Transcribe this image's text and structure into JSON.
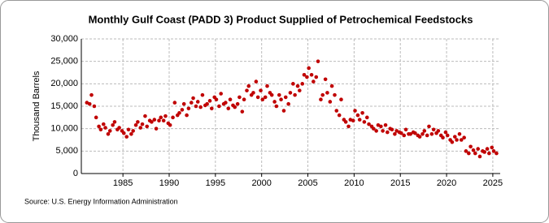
{
  "chart_data": {
    "type": "scatter",
    "title": "Monthly Gulf Coast (PADD 3) Product Supplied of Petrochemical Feedstocks",
    "y_label": "Thousand Barrels",
    "source": "Source: U.S. Energy Information Administration",
    "xlim": [
      1980.5,
      2025.8
    ],
    "ylim": [
      0,
      30000
    ],
    "xticks": [
      1985,
      1990,
      1995,
      2000,
      2005,
      2010,
      2015,
      2020,
      2025
    ],
    "yticks": [
      {
        "value": 0,
        "label": "0"
      },
      {
        "value": 5000,
        "label": "5,000"
      },
      {
        "value": 10000,
        "label": "10,000"
      },
      {
        "value": 15000,
        "label": "15,000"
      },
      {
        "value": 20000,
        "label": "20,000"
      },
      {
        "value": 25000,
        "label": "25,000"
      },
      {
        "value": 30000,
        "label": "30,000"
      }
    ],
    "grid": true,
    "color": "#c00000",
    "x": [
      1981.1,
      1981.4,
      1981.6,
      1981.9,
      1982.1,
      1982.4,
      1982.6,
      1982.9,
      1983.1,
      1983.4,
      1983.6,
      1983.9,
      1984.1,
      1984.4,
      1984.6,
      1984.9,
      1985.1,
      1985.4,
      1985.6,
      1985.9,
      1986.1,
      1986.4,
      1986.6,
      1986.9,
      1987.1,
      1987.4,
      1987.6,
      1987.9,
      1988.1,
      1988.4,
      1988.6,
      1988.9,
      1989.1,
      1989.4,
      1989.6,
      1989.9,
      1990.1,
      1990.4,
      1990.6,
      1990.9,
      1991.1,
      1991.4,
      1991.6,
      1991.9,
      1992.1,
      1992.4,
      1992.6,
      1992.9,
      1993.1,
      1993.4,
      1993.6,
      1993.9,
      1994.1,
      1994.4,
      1994.6,
      1994.9,
      1995.1,
      1995.4,
      1995.6,
      1995.9,
      1996.1,
      1996.4,
      1996.6,
      1996.9,
      1997.1,
      1997.4,
      1997.6,
      1997.9,
      1998.1,
      1998.4,
      1998.6,
      1998.9,
      1999.1,
      1999.4,
      1999.6,
      1999.9,
      2000.1,
      2000.4,
      2000.6,
      2000.9,
      2001.1,
      2001.4,
      2001.6,
      2001.9,
      2002.1,
      2002.4,
      2002.6,
      2002.9,
      2003.1,
      2003.4,
      2003.6,
      2003.9,
      2004.1,
      2004.4,
      2004.6,
      2004.9,
      2005.1,
      2005.4,
      2005.6,
      2005.9,
      2006.1,
      2006.4,
      2006.6,
      2006.9,
      2007.1,
      2007.4,
      2007.6,
      2007.9,
      2008.1,
      2008.4,
      2008.6,
      2008.9,
      2009.1,
      2009.4,
      2009.6,
      2009.9,
      2010.1,
      2010.4,
      2010.6,
      2010.9,
      2011.1,
      2011.4,
      2011.6,
      2011.9,
      2012.1,
      2012.4,
      2012.6,
      2012.9,
      2013.1,
      2013.4,
      2013.6,
      2013.9,
      2014.1,
      2014.4,
      2014.6,
      2014.9,
      2015.1,
      2015.4,
      2015.6,
      2015.9,
      2016.1,
      2016.4,
      2016.6,
      2016.9,
      2017.1,
      2017.4,
      2017.6,
      2017.9,
      2018.1,
      2018.4,
      2018.6,
      2018.9,
      2019.1,
      2019.4,
      2019.6,
      2019.9,
      2020.1,
      2020.4,
      2020.6,
      2020.9,
      2021.1,
      2021.4,
      2021.6,
      2021.9,
      2022.1,
      2022.4,
      2022.6,
      2022.9,
      2023.1,
      2023.4,
      2023.6,
      2023.9,
      2024.1,
      2024.4,
      2024.6,
      2024.9,
      2025.1,
      2025.4
    ],
    "values": [
      15800,
      15500,
      17500,
      15000,
      12500,
      10500,
      9800,
      11000,
      10200,
      8800,
      9500,
      10800,
      11500,
      9800,
      10200,
      9500,
      9000,
      8200,
      9800,
      8800,
      9500,
      10800,
      11500,
      10200,
      11000,
      12800,
      10500,
      11800,
      11500,
      12000,
      10000,
      11800,
      12500,
      11800,
      12800,
      11200,
      10800,
      12500,
      15800,
      13000,
      13500,
      14200,
      15500,
      13000,
      14500,
      15800,
      16800,
      15000,
      16000,
      14800,
      17500,
      15200,
      15500,
      16200,
      14500,
      17000,
      16500,
      15000,
      17800,
      15500,
      15800,
      14500,
      16500,
      15200,
      14800,
      15500,
      17000,
      13800,
      16500,
      18500,
      19500,
      17500,
      18000,
      20500,
      17000,
      18500,
      16500,
      17000,
      19500,
      18000,
      17500,
      16000,
      15000,
      17500,
      16500,
      14000,
      17000,
      15500,
      18000,
      20000,
      17500,
      19500,
      18500,
      20000,
      22000,
      21500,
      23500,
      22000,
      20500,
      21500,
      25000,
      16500,
      17500,
      21000,
      18000,
      16000,
      19500,
      17500,
      14000,
      13000,
      16500,
      12000,
      11500,
      10500,
      12000,
      11800,
      14000,
      13000,
      12000,
      13500,
      11500,
      12500,
      11000,
      10500,
      10000,
      9500,
      10800,
      10500,
      9500,
      10800,
      9200,
      10000,
      9800,
      8800,
      9500,
      9200,
      9000,
      8500,
      9800,
      8800,
      8800,
      9200,
      9000,
      8500,
      8200,
      8800,
      9500,
      8500,
      10500,
      8800,
      9800,
      9000,
      9500,
      8500,
      8000,
      9200,
      8500,
      7500,
      7000,
      8200,
      7500,
      8800,
      7500,
      8000,
      5000,
      4500,
      6000,
      5200,
      4500,
      5500,
      3800,
      5000,
      4800,
      5500,
      4500,
      5800,
      5000,
      4500
    ]
  }
}
